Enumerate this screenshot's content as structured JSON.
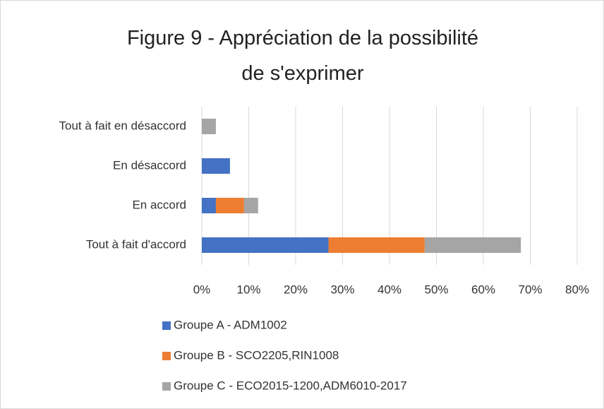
{
  "chart_data": {
    "type": "stacked_barh",
    "title": "Figure 9 - Appréciation de la possibilité de s'exprimer",
    "categories": [
      "Tout à fait en désaccord",
      "En désaccord",
      "En accord",
      "Tout à fait d'accord"
    ],
    "series": [
      {
        "name": "Groupe A - ADM1002",
        "color": "#4472c4",
        "values": [
          null,
          6,
          3,
          27
        ]
      },
      {
        "name": "Groupe B - SCO2205,RIN1008",
        "color": "#ed7d31",
        "values": [
          null,
          null,
          6,
          20.5
        ]
      },
      {
        "name": "Groupe C - ECO2015-1200,ADM6010-2017",
        "color": "#a5a5a5",
        "values": [
          3,
          null,
          3,
          20.5
        ]
      }
    ],
    "xlim": [
      0,
      80
    ],
    "xticks": [
      {
        "value": 0,
        "label": "0%"
      },
      {
        "value": 10,
        "label": "10%"
      },
      {
        "value": 20,
        "label": "20%"
      },
      {
        "value": 30,
        "label": "30%"
      },
      {
        "value": 40,
        "label": "40%"
      },
      {
        "value": 50,
        "label": "50%"
      },
      {
        "value": 60,
        "label": "60%"
      },
      {
        "value": 70,
        "label": "70%"
      },
      {
        "value": 80,
        "label": "80%"
      }
    ],
    "grid": true,
    "legend": "bottom"
  }
}
